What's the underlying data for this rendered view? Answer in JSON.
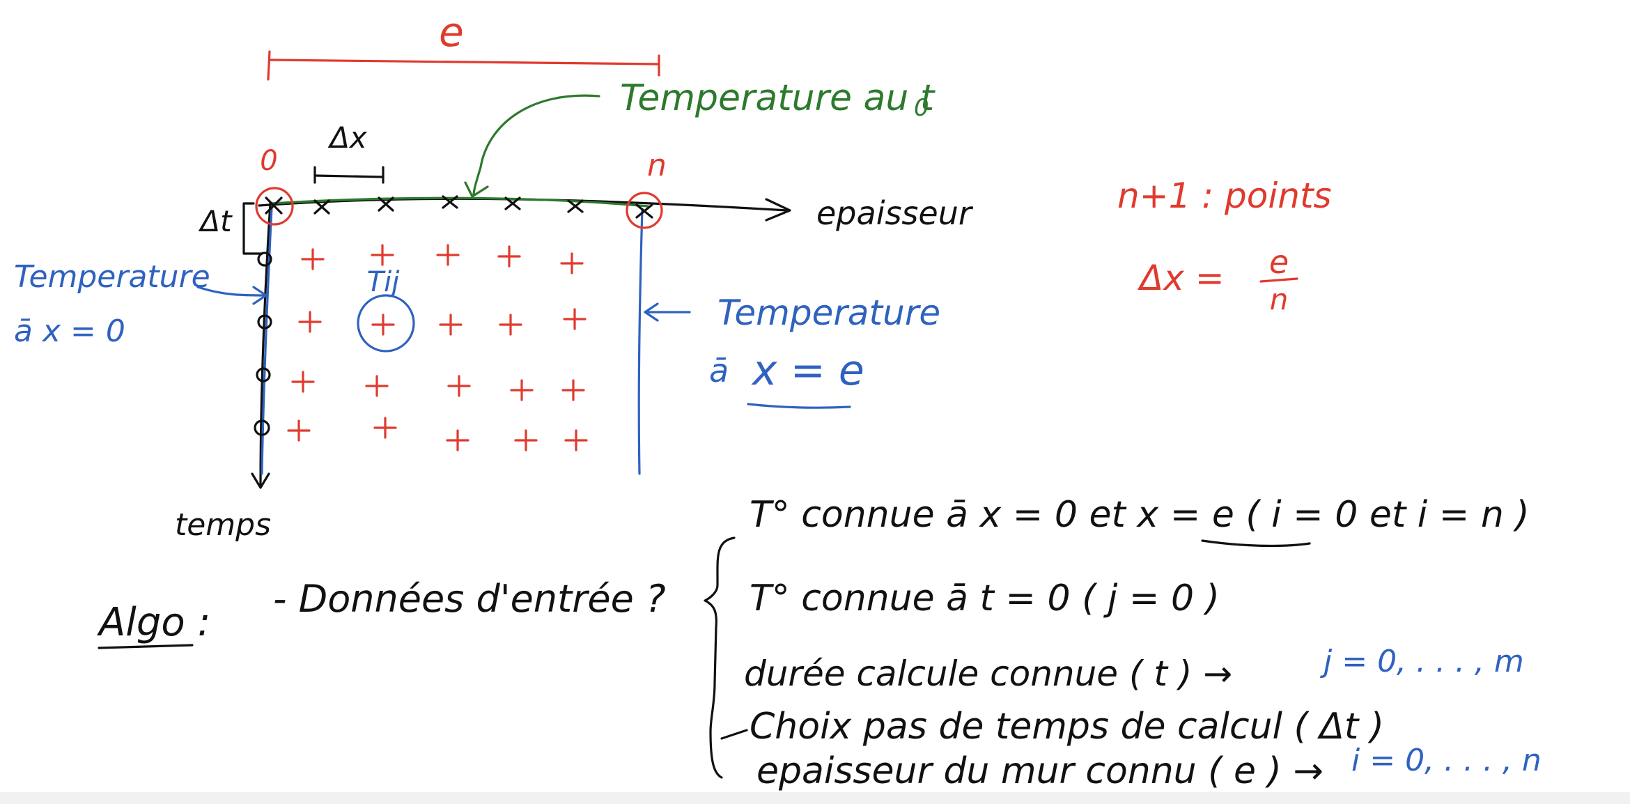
{
  "diagram": {
    "top_dimension": "e",
    "dx_label": "Δx",
    "dt_label": "Δt",
    "index_start": "0",
    "index_end": "n",
    "axis_x_label": "epaisseur",
    "axis_t_label": "temps",
    "green_note": "Temperature au t",
    "green_note_sub": "0",
    "left_note_line1": "Temperature",
    "left_note_line2": "ā  x = 0",
    "right_note_line1": "Temperature",
    "right_note_line2_prefix": "ā",
    "right_note_line2_expr": "x = e",
    "cell_label": "Tij",
    "points_note": "n+1 :  points",
    "dx_formula_lhs": "Δx  =",
    "dx_formula_num": "e",
    "dx_formula_den": "n"
  },
  "algo": {
    "title": "Algo :",
    "question": "- Données d'entrée ?",
    "items": [
      {
        "text": "T° connue  ā  x = 0  et  x = e    ( i = 0 et i = n )",
        "note": ""
      },
      {
        "text": "T° connue  ā  t = 0   ( j = 0 )",
        "note": ""
      },
      {
        "text": "durée calcule  connue ( t ) →",
        "note": "j = 0, . . . , m"
      },
      {
        "text": "Choix pas de temps de calcul ( Δt )",
        "note": ""
      },
      {
        "text": "epaisseur du mur connu ( e ) →",
        "note": "i = 0, . . . , n"
      }
    ]
  },
  "colors": {
    "red": "#e03a2e",
    "green": "#2d7a2d",
    "blue": "#2f62c0",
    "black": "#111111"
  }
}
